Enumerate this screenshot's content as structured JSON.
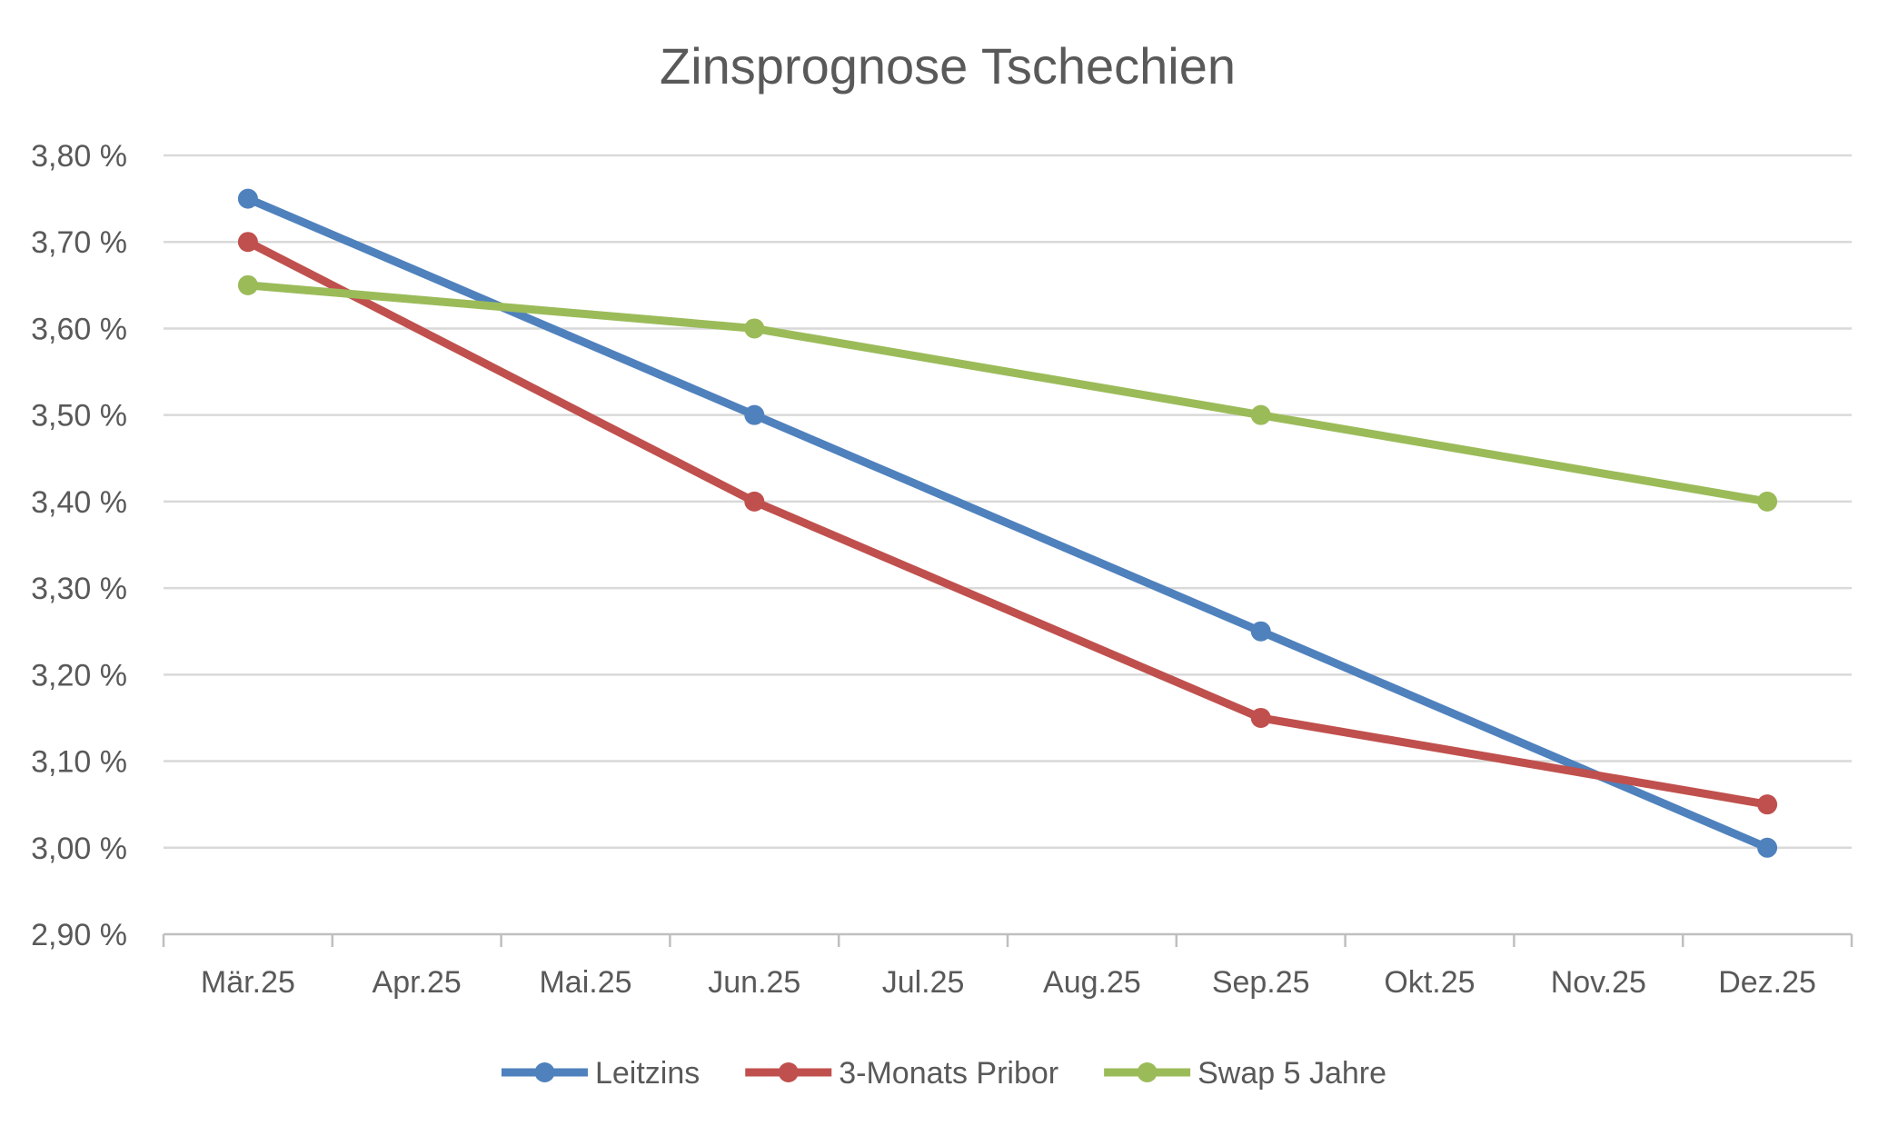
{
  "chart_data": {
    "type": "line",
    "title": "Zinsprognose Tschechien",
    "xlabel": "",
    "ylabel": "",
    "categories": [
      "Mär.25",
      "Apr.25",
      "Mai.25",
      "Jun.25",
      "Jul.25",
      "Aug.25",
      "Sep.25",
      "Okt.25",
      "Nov.25",
      "Dez.25"
    ],
    "y_ticks": [
      2.9,
      3.0,
      3.1,
      3.2,
      3.3,
      3.4,
      3.5,
      3.6,
      3.7,
      3.8
    ],
    "y_tick_labels": [
      "2,90 %",
      "3,00 %",
      "3,10 %",
      "3,20 %",
      "3,30 %",
      "3,40 %",
      "3,50 %",
      "3,60 %",
      "3,70 %",
      "3,80 %"
    ],
    "ylim": [
      2.9,
      3.8
    ],
    "grid": "horizontal",
    "legend_position": "bottom",
    "series": [
      {
        "name": "Leitzins",
        "color": "#4f81bd",
        "points": [
          {
            "category": "Mär.25",
            "value": 3.75
          },
          {
            "category": "Jun.25",
            "value": 3.5
          },
          {
            "category": "Sep.25",
            "value": 3.25
          },
          {
            "category": "Dez.25",
            "value": 3.0
          }
        ]
      },
      {
        "name": "3-Monats Pribor",
        "color": "#c0504d",
        "points": [
          {
            "category": "Mär.25",
            "value": 3.7
          },
          {
            "category": "Jun.25",
            "value": 3.4
          },
          {
            "category": "Sep.25",
            "value": 3.15
          },
          {
            "category": "Dez.25",
            "value": 3.05
          }
        ]
      },
      {
        "name": "Swap 5 Jahre",
        "color": "#9bbb59",
        "points": [
          {
            "category": "Mär.25",
            "value": 3.65
          },
          {
            "category": "Jun.25",
            "value": 3.6
          },
          {
            "category": "Sep.25",
            "value": 3.5
          },
          {
            "category": "Dez.25",
            "value": 3.4
          }
        ]
      }
    ]
  },
  "colors": {
    "title": "#595959",
    "tick_text": "#595959",
    "grid": "#d9d9d9",
    "axis": "#bfbfbf"
  }
}
